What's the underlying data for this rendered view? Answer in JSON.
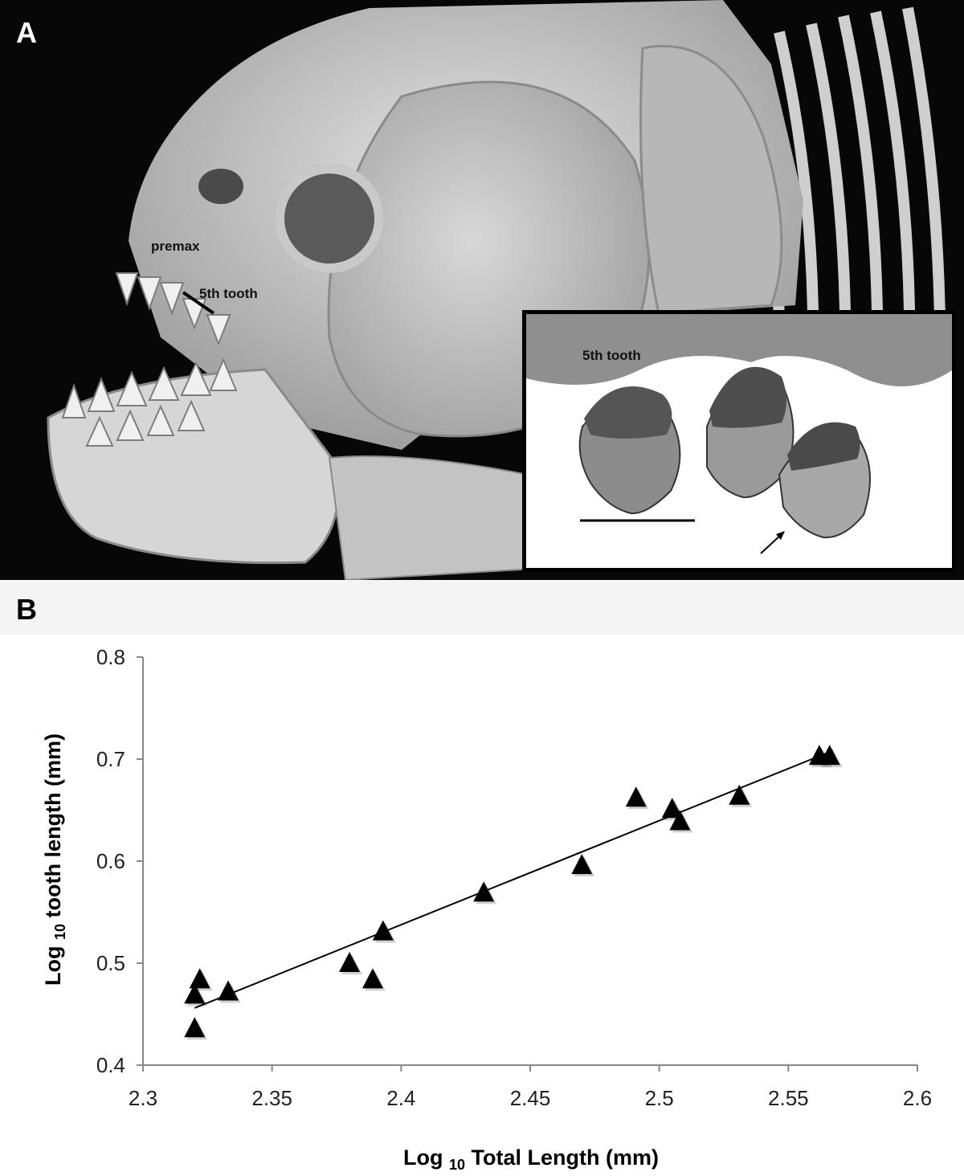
{
  "figure": {
    "panel_a": {
      "letter": "A",
      "labels": {
        "premax": "premax",
        "fifth_tooth": "5th tooth"
      },
      "inset": {
        "label": "5th tooth"
      }
    },
    "panel_b": {
      "letter": "B"
    }
  },
  "chart_data": {
    "type": "scatter",
    "title": "",
    "xlabel_main": "Log",
    "xlabel_sub": "10",
    "xlabel_rest": "Total Length (mm)",
    "ylabel_main": "Log",
    "ylabel_sub": "10",
    "ylabel_rest": "tooth length (mm)",
    "xlim": [
      2.3,
      2.6
    ],
    "ylim": [
      0.4,
      0.8
    ],
    "xticks": [
      "2.3",
      "2.35",
      "2.4",
      "2.45",
      "2.5",
      "2.55",
      "2.6"
    ],
    "yticks": [
      "0.4",
      "0.5",
      "0.6",
      "0.7",
      "0.8"
    ],
    "grid": false,
    "marker": "filled-triangle",
    "points": [
      {
        "x": 2.32,
        "y": 0.436
      },
      {
        "x": 2.32,
        "y": 0.469
      },
      {
        "x": 2.322,
        "y": 0.484
      },
      {
        "x": 2.333,
        "y": 0.472
      },
      {
        "x": 2.38,
        "y": 0.5
      },
      {
        "x": 2.389,
        "y": 0.484
      },
      {
        "x": 2.393,
        "y": 0.531
      },
      {
        "x": 2.432,
        "y": 0.569
      },
      {
        "x": 2.47,
        "y": 0.596
      },
      {
        "x": 2.491,
        "y": 0.662
      },
      {
        "x": 2.505,
        "y": 0.651
      },
      {
        "x": 2.508,
        "y": 0.639
      },
      {
        "x": 2.531,
        "y": 0.664
      },
      {
        "x": 2.562,
        "y": 0.703
      },
      {
        "x": 2.566,
        "y": 0.703
      }
    ],
    "trendline": {
      "x": [
        2.32,
        2.565
      ],
      "y": [
        0.456,
        0.706
      ]
    },
    "colors": {
      "marker": "#000000",
      "axis": "#888888",
      "line": "#000000"
    }
  }
}
